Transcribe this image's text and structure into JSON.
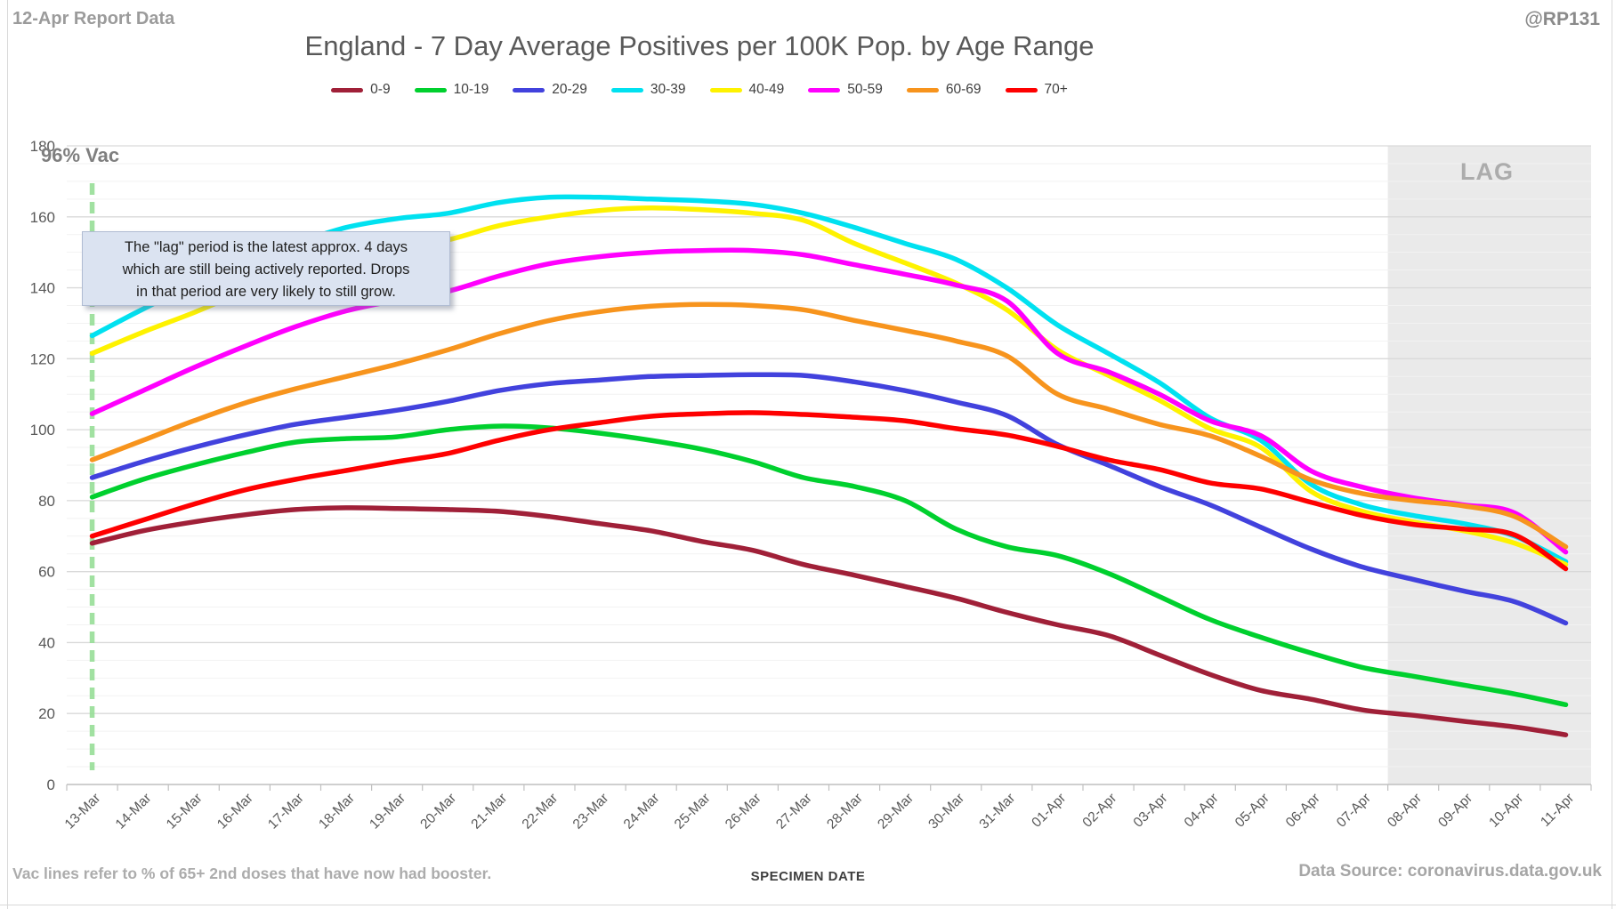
{
  "header": {
    "report_label": "12-Apr Report Data",
    "handle": "@RP131"
  },
  "footer": {
    "vac_note": "Vac lines refer to % of 65+ 2nd doses that have now had booster.",
    "data_source": "Data Source: coronavirus.data.gov.uk"
  },
  "annotation": {
    "lines": [
      "The \"lag\" period is the latest approx. 4 days",
      "which are still being actively reported.  Drops",
      "in that period are very likely to still grow."
    ]
  },
  "chart_data": {
    "type": "line",
    "title": "England - 7 Day Average Positives per 100K Pop. by Age Range",
    "xlabel": "SPECIMEN DATE",
    "ylabel": "",
    "ylim": [
      0,
      180
    ],
    "y_major": 20,
    "y_minor": 5,
    "grid": "on",
    "legend_position": "top",
    "categories": [
      "13-Mar",
      "14-Mar",
      "15-Mar",
      "16-Mar",
      "17-Mar",
      "18-Mar",
      "19-Mar",
      "20-Mar",
      "21-Mar",
      "22-Mar",
      "23-Mar",
      "24-Mar",
      "25-Mar",
      "26-Mar",
      "27-Mar",
      "28-Mar",
      "29-Mar",
      "30-Mar",
      "31-Mar",
      "01-Apr",
      "02-Apr",
      "03-Apr",
      "04-Apr",
      "05-Apr",
      "06-Apr",
      "07-Apr",
      "08-Apr",
      "09-Apr",
      "10-Apr",
      "11-Apr"
    ],
    "series": [
      {
        "name": "0-9",
        "color": "#A02038",
        "values": [
          68,
          71.5,
          74,
          76,
          77.5,
          78,
          77.8,
          77.5,
          77,
          75.5,
          73.5,
          71.5,
          68.5,
          66,
          62,
          59,
          55.8,
          52.5,
          48.5,
          45,
          42,
          36.5,
          31,
          26.5,
          24,
          21,
          19.5,
          17.8,
          16.2,
          14
        ]
      },
      {
        "name": "10-19",
        "color": "#00D02E",
        "values": [
          81,
          86,
          90,
          93.5,
          96.5,
          97.5,
          98,
          100,
          101,
          100.5,
          99,
          97,
          94.5,
          91,
          86.5,
          84,
          80,
          72,
          67,
          64.5,
          59.5,
          53,
          46.5,
          41.5,
          37,
          33,
          30.5,
          28,
          25.5,
          22.5
        ]
      },
      {
        "name": "20-29",
        "color": "#4242DD",
        "values": [
          86.5,
          91,
          95,
          98.5,
          101.5,
          103.5,
          105.5,
          108,
          111,
          113,
          114,
          115,
          115.3,
          115.5,
          115.3,
          113.5,
          111,
          107.8,
          104,
          95.8,
          90,
          84,
          78.8,
          72.5,
          66.3,
          61.3,
          57.8,
          54.5,
          51.5,
          45.5
        ]
      },
      {
        "name": "30-39",
        "color": "#00E1F0",
        "values": [
          126.5,
          134,
          141,
          147.5,
          152.5,
          157,
          159.5,
          161,
          164,
          165.5,
          165.5,
          165,
          164.5,
          163.5,
          161,
          157,
          152.5,
          148,
          140,
          129.5,
          121.5,
          113.3,
          103.3,
          97,
          84.5,
          78.8,
          75.8,
          73.5,
          70,
          62.8
        ]
      },
      {
        "name": "40-49",
        "color": "#FEF200",
        "values": [
          121.5,
          127.5,
          133,
          139,
          144.5,
          149,
          151.5,
          153.5,
          157.5,
          160,
          161.8,
          162.5,
          162,
          161,
          159,
          152.5,
          147,
          141.3,
          133.8,
          122.5,
          115.3,
          108.3,
          100.3,
          95,
          82.5,
          77,
          74,
          71.5,
          68,
          62
        ]
      },
      {
        "name": "50-59",
        "color": "#FF00FE",
        "values": [
          104.5,
          111,
          117.5,
          123.5,
          129,
          133.5,
          136.5,
          139,
          143.3,
          146.8,
          148.8,
          150,
          150.5,
          150.5,
          149.3,
          146.5,
          143.8,
          140.8,
          136.3,
          121.5,
          116.3,
          110,
          102.5,
          98.3,
          88.3,
          83.8,
          80.8,
          78.8,
          76.5,
          65.5
        ]
      },
      {
        "name": "60-69",
        "color": "#F7941D",
        "values": [
          91.5,
          97,
          102.5,
          107.5,
          111.5,
          115,
          118.5,
          122.5,
          127,
          130.8,
          133.3,
          134.8,
          135.3,
          135,
          133.8,
          130.8,
          128,
          125,
          120.8,
          110,
          105.8,
          101.5,
          98.3,
          92.5,
          85.8,
          82,
          80,
          78.5,
          75.5,
          67
        ]
      },
      {
        "name": "70+",
        "color": "#FE0000",
        "values": [
          70,
          74.5,
          79,
          83,
          86,
          88.5,
          91,
          93.3,
          97,
          100,
          102,
          103.8,
          104.5,
          104.8,
          104.3,
          103.5,
          102.5,
          100.3,
          98.5,
          95.3,
          91.5,
          88.8,
          85,
          83.3,
          79.5,
          75.8,
          73.3,
          72,
          70.3,
          60.8
        ]
      }
    ],
    "lag": {
      "label": "LAG",
      "start_category": "08-Apr",
      "days": 4,
      "fill": "#EAEAEA"
    },
    "vac_line": {
      "label": "96% Vac",
      "category": "13-Mar",
      "color": "#97DE97"
    }
  }
}
